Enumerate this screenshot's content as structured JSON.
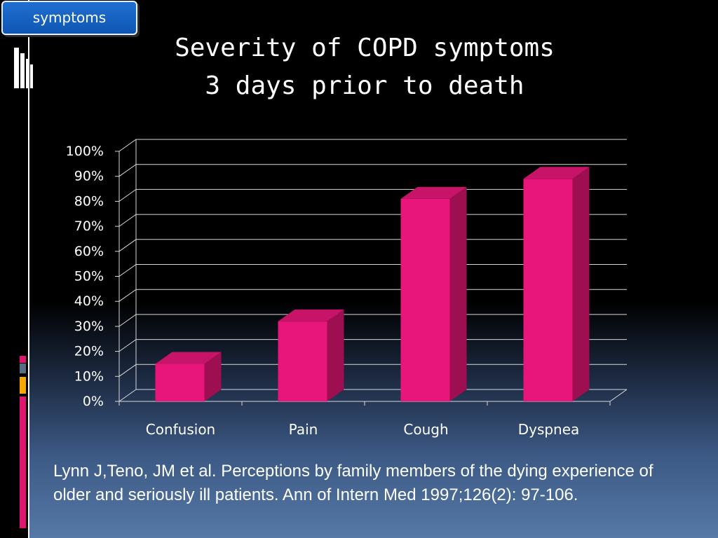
{
  "tab": {
    "label": "symptoms"
  },
  "title": {
    "line1": "Severity of COPD symptoms",
    "line2": "3 days prior to death"
  },
  "reference": "Lynn J,Teno, JM et al. Perceptions by family members of the dying experience of older and seriously ill patients. Ann of Intern Med 1997;126(2): 97-106.",
  "colors": {
    "bar_front": "#e8157a",
    "bar_side": "#9e0f52",
    "bar_top": "#c81468",
    "grid": "#d8d8d8",
    "accent_pink": "#e0156e",
    "accent_blue": "#2a7bd6",
    "accent_orange": "#f5a800"
  },
  "chart_data": {
    "type": "bar",
    "categories": [
      "Confusion",
      "Pain",
      "Cough",
      "Dyspnea"
    ],
    "values": [
      15,
      32,
      81,
      89
    ],
    "yticks": [
      "0%",
      "10%",
      "20%",
      "30%",
      "40%",
      "50%",
      "60%",
      "70%",
      "80%",
      "90%",
      "100%"
    ],
    "ylim": [
      0,
      100
    ],
    "title": "",
    "xlabel": "",
    "ylabel": "",
    "grid": true,
    "style": "3d-column"
  }
}
